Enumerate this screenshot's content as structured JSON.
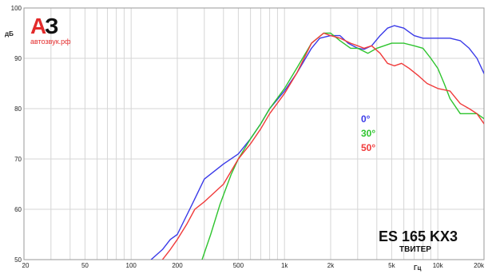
{
  "logo": {
    "mark_a": "А",
    "mark_3": "З",
    "site": "автозвук.рф"
  },
  "model": {
    "name": "ES 165 KX3",
    "subtitle": "ТВИТЕР"
  },
  "colors": {
    "zero": "#3a3ae8",
    "thirty": "#2ec42e",
    "fifty": "#f03a3a",
    "grid": "#d6d6d6",
    "logo_red": "#e32b2b"
  },
  "chart_data": {
    "type": "line",
    "x_scale": "log",
    "xlim": [
      20,
      20000
    ],
    "ylim": [
      50,
      100
    ],
    "ylabel": "дБ",
    "xlabel": "Гц",
    "grid": true,
    "legend_position": "right-middle",
    "y_ticks": [
      50,
      60,
      70,
      80,
      90,
      100
    ],
    "x_ticks": [
      {
        "v": 20,
        "label": "20"
      },
      {
        "v": 50,
        "label": "50"
      },
      {
        "v": 100,
        "label": "100"
      },
      {
        "v": 200,
        "label": "200"
      },
      {
        "v": 500,
        "label": "500"
      },
      {
        "v": 1000,
        "label": "1k"
      },
      {
        "v": 2000,
        "label": "2k"
      },
      {
        "v": 5000,
        "label": "5k"
      },
      {
        "v": 10000,
        "label": "10k"
      },
      {
        "v": 20000,
        "label": "20k"
      }
    ],
    "series": [
      {
        "name": "0°",
        "color": "#3a3ae8",
        "x": [
          135,
          160,
          180,
          200,
          250,
          300,
          400,
          500,
          600,
          700,
          800,
          1000,
          1200,
          1500,
          1700,
          2000,
          2300,
          2600,
          3000,
          3300,
          3700,
          4200,
          4700,
          5200,
          6000,
          7000,
          8000,
          9000,
          10000,
          12000,
          14000,
          16000,
          18000,
          20000
        ],
        "y": [
          50,
          52,
          54,
          55,
          61,
          66,
          69,
          71,
          74,
          77,
          80,
          83.5,
          87,
          92,
          94,
          94.5,
          94.5,
          93,
          92,
          91.8,
          92.5,
          94.5,
          96,
          96.5,
          96,
          94.5,
          94,
          94,
          94,
          94,
          93.5,
          92,
          90,
          87
        ]
      },
      {
        "name": "30°",
        "color": "#2ec42e",
        "x": [
          290,
          330,
          380,
          450,
          500,
          600,
          700,
          800,
          1000,
          1200,
          1500,
          1800,
          2000,
          2300,
          2700,
          3000,
          3500,
          4000,
          5000,
          6000,
          7000,
          8000,
          9000,
          10000,
          11000,
          12000,
          14000,
          16000,
          18000,
          20000
        ],
        "y": [
          50,
          55,
          61,
          67,
          70,
          74,
          77,
          80,
          84,
          88,
          93,
          95,
          95,
          93.5,
          92,
          92,
          91,
          92,
          93,
          93,
          92.5,
          92,
          90,
          88,
          85,
          82,
          79,
          79,
          79,
          78
        ]
      },
      {
        "name": "50°",
        "color": "#f03a3a",
        "x": [
          160,
          180,
          200,
          230,
          260,
          300,
          400,
          500,
          600,
          700,
          800,
          1000,
          1200,
          1500,
          1800,
          2000,
          2300,
          2700,
          3000,
          3300,
          3700,
          4200,
          4700,
          5200,
          5800,
          6500,
          7500,
          8500,
          10000,
          12000,
          14000,
          16000,
          18000,
          20000
        ],
        "y": [
          50,
          52,
          54,
          57,
          60,
          61.5,
          65,
          70,
          73,
          76,
          79,
          83,
          87,
          93,
          95,
          94.5,
          94,
          93,
          92.5,
          92,
          92.5,
          91,
          89,
          88.5,
          89,
          88,
          86.5,
          85,
          84,
          83.5,
          81,
          80,
          79,
          77
        ]
      }
    ]
  }
}
